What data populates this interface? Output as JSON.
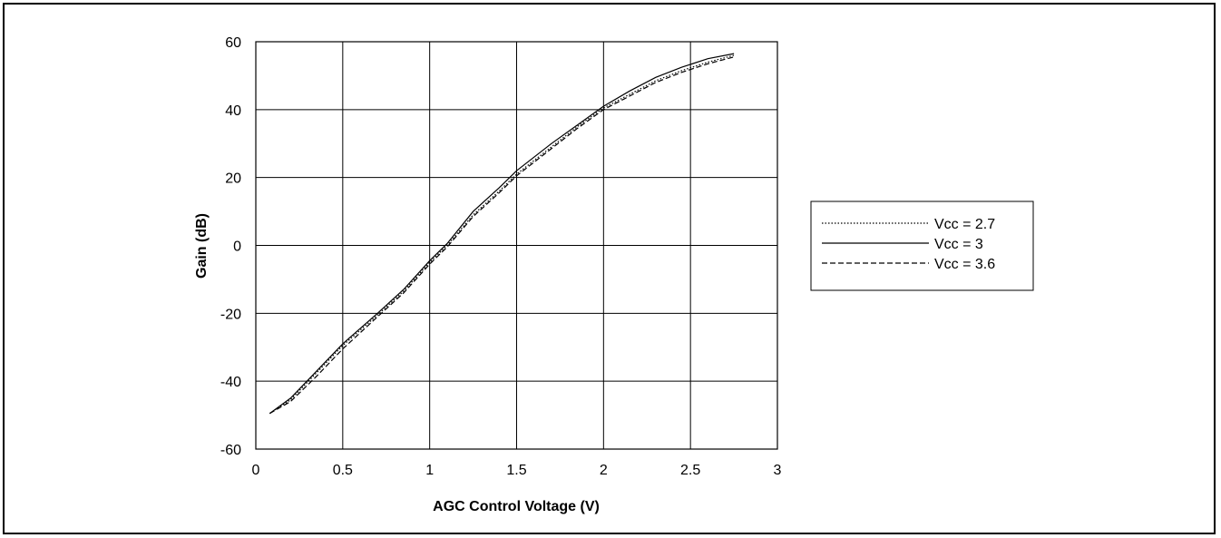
{
  "chart_data": {
    "type": "line",
    "title": "",
    "xlabel": "AGC Control Voltage (V)",
    "ylabel": "Gain (dB)",
    "xlim": [
      0,
      3
    ],
    "ylim": [
      -60,
      60
    ],
    "x_ticks": [
      0,
      0.5,
      1,
      1.5,
      2,
      2.5,
      3
    ],
    "x_tick_labels": [
      "0",
      "0.5",
      "1",
      "1.5",
      "2",
      "2.5",
      "3"
    ],
    "y_ticks": [
      60,
      40,
      20,
      0,
      -20,
      -40,
      -60
    ],
    "y_tick_labels": [
      "60",
      "40",
      "20",
      "0",
      "-20",
      "-40",
      "-60"
    ],
    "grid": true,
    "legend_position": "right",
    "series": [
      {
        "name": "Vcc = 2.7",
        "line_style": "dotted",
        "color": "#000000",
        "x": [
          0.08,
          0.2,
          0.35,
          0.5,
          0.7,
          0.85,
          1.0,
          1.1,
          1.25,
          1.4,
          1.5,
          1.7,
          1.85,
          2.0,
          2.15,
          2.3,
          2.45,
          2.6,
          2.75
        ],
        "y": [
          -49.5,
          -45.5,
          -37.5,
          -29.5,
          -20.5,
          -13.5,
          -5,
          0,
          9,
          16,
          21,
          29,
          35,
          40.5,
          44.5,
          48.5,
          51.5,
          54,
          56
        ]
      },
      {
        "name": "Vcc = 3",
        "line_style": "solid",
        "color": "#000000",
        "x": [
          0.08,
          0.2,
          0.35,
          0.5,
          0.7,
          0.85,
          1.0,
          1.1,
          1.25,
          1.4,
          1.5,
          1.7,
          1.85,
          2.0,
          2.15,
          2.3,
          2.45,
          2.6,
          2.75
        ],
        "y": [
          -49.5,
          -45,
          -37,
          -29,
          -20,
          -13,
          -4.5,
          0.5,
          10,
          17,
          22,
          30,
          35.5,
          41,
          45.5,
          49.5,
          52.5,
          55,
          56.5
        ]
      },
      {
        "name": "Vcc = 3.6",
        "line_style": "dashed",
        "color": "#000000",
        "x": [
          0.08,
          0.2,
          0.35,
          0.5,
          0.7,
          0.85,
          1.0,
          1.1,
          1.25,
          1.4,
          1.5,
          1.7,
          1.85,
          2.0,
          2.15,
          2.3,
          2.45,
          2.6,
          2.75
        ],
        "y": [
          -49.5,
          -46,
          -38.5,
          -30.5,
          -21,
          -14,
          -5.5,
          -0.5,
          8.5,
          15.5,
          20.5,
          28.5,
          34.5,
          40,
          44,
          48,
          51,
          53.5,
          55.5
        ]
      }
    ]
  }
}
